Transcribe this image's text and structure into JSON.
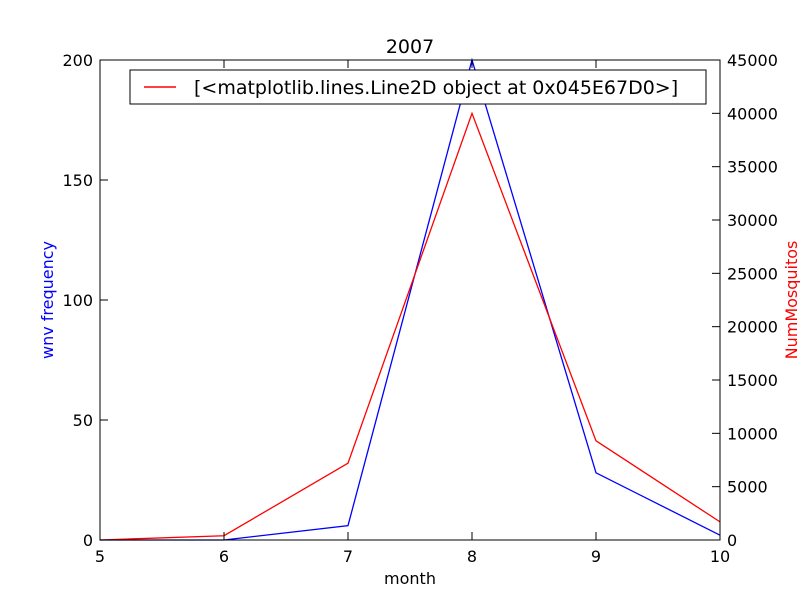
{
  "chart_data": {
    "type": "line",
    "title": "2007",
    "xlabel": "month",
    "ylabel_left": "wnv frequency",
    "ylabel_right": "NumMosquitos",
    "x": [
      5,
      6,
      7,
      8,
      9,
      10
    ],
    "xlim": [
      5,
      10
    ],
    "xticks": [
      "5",
      "6",
      "7",
      "8",
      "9",
      "10"
    ],
    "ylim_left": [
      0,
      200
    ],
    "yticks_left": [
      "0",
      "50",
      "100",
      "150",
      "200"
    ],
    "ylim_right": [
      0,
      45000
    ],
    "yticks_right": [
      "0",
      "5000",
      "10000",
      "15000",
      "20000",
      "25000",
      "30000",
      "35000",
      "40000",
      "45000"
    ],
    "grid": false,
    "legend": {
      "placement": "top-right",
      "entries": [
        "[<matplotlib.lines.Line2D object at 0x045E67D0>]"
      ]
    },
    "series": [
      {
        "axis": "left",
        "color": "#0000ff",
        "values": [
          0,
          0,
          6,
          200,
          28,
          2
        ]
      },
      {
        "axis": "right",
        "color": "#ff0000",
        "values": [
          0,
          400,
          7200,
          40000,
          9300,
          1700
        ]
      }
    ],
    "colors": {
      "left_axis_label": "#0000ff",
      "right_axis_label": "#ff0000",
      "legend_line": "#ff0000"
    }
  }
}
